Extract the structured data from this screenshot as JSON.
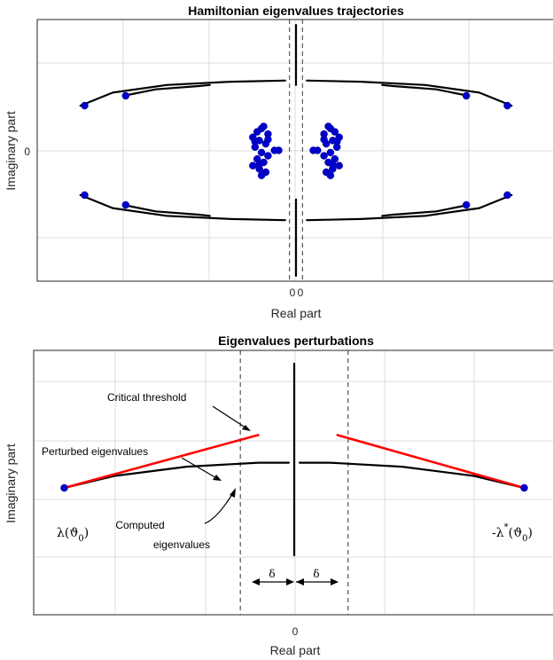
{
  "chart_data": [
    {
      "type": "scatter",
      "title": "Hamiltonian eigenvalues trajectories",
      "xlabel": "Real part",
      "ylabel": "Imaginary part",
      "xticks": [
        "0",
        "0"
      ],
      "yticks": [
        "0"
      ],
      "grid": true,
      "xlim": [
        -1.2,
        1.2
      ],
      "ylim": [
        -1.2,
        1.2
      ],
      "guide_lines_x": [
        -0.03,
        0.03
      ],
      "series": [
        {
          "kind": "curve",
          "color": "#000000",
          "paths": [
            {
              "x": [
                -1.0,
                -0.85,
                -0.6,
                -0.3,
                -0.05
              ],
              "y": [
                0.41,
                0.53,
                0.6,
                0.63,
                0.64
              ]
            },
            {
              "x": [
                -0.8,
                -0.65,
                -0.45,
                -0.4
              ],
              "y": [
                0.5,
                0.56,
                0.59,
                0.6
              ]
            },
            {
              "x": [
                1.0,
                0.85,
                0.6,
                0.3,
                0.05
              ],
              "y": [
                0.41,
                0.53,
                0.6,
                0.63,
                0.64
              ]
            },
            {
              "x": [
                0.8,
                0.65,
                0.45,
                0.4
              ],
              "y": [
                0.5,
                0.56,
                0.59,
                0.6
              ]
            },
            {
              "x": [
                -1.0,
                -0.85,
                -0.6,
                -0.3,
                -0.05
              ],
              "y": [
                -0.41,
                -0.53,
                -0.6,
                -0.63,
                -0.64
              ]
            },
            {
              "x": [
                -0.8,
                -0.65,
                -0.45,
                -0.4
              ],
              "y": [
                -0.5,
                -0.56,
                -0.59,
                -0.6
              ]
            },
            {
              "x": [
                1.0,
                0.85,
                0.6,
                0.3,
                0.05
              ],
              "y": [
                -0.41,
                -0.53,
                -0.6,
                -0.63,
                -0.64
              ]
            },
            {
              "x": [
                0.8,
                0.65,
                0.45,
                0.4
              ],
              "y": [
                -0.5,
                -0.56,
                -0.59,
                -0.6
              ]
            },
            {
              "x": [
                0.0,
                0.0
              ],
              "y": [
                0.6,
                1.15
              ]
            },
            {
              "x": [
                0.0,
                0.0
              ],
              "y": [
                -0.45,
                -1.15
              ]
            }
          ]
        },
        {
          "kind": "markers",
          "color": "#0000cc",
          "x": [
            -0.98,
            -0.79,
            0.79,
            0.98,
            -0.98,
            -0.79,
            0.79,
            0.98,
            -0.1,
            0.1,
            -0.16,
            -0.18,
            -0.15,
            -0.13,
            -0.2,
            -0.17,
            -0.14,
            -0.19,
            -0.16,
            -0.13,
            -0.18,
            -0.15,
            -0.2,
            -0.17,
            -0.14,
            -0.16,
            -0.19,
            -0.13,
            -0.17,
            0.16,
            0.18,
            0.15,
            0.13,
            0.2,
            0.17,
            0.14,
            0.19,
            0.16,
            0.13,
            0.18,
            0.15,
            0.2,
            0.17,
            0.14,
            0.16,
            0.19,
            0.13,
            0.17,
            -0.08,
            0.08
          ],
          "y": [
            0.41,
            0.5,
            0.5,
            0.41,
            -0.41,
            -0.5,
            -0.5,
            -0.41,
            0.0,
            0.0,
            0.2,
            0.17,
            0.22,
            0.15,
            0.12,
            0.09,
            0.06,
            0.03,
            -0.02,
            -0.05,
            -0.08,
            -0.11,
            -0.14,
            -0.17,
            -0.2,
            -0.23,
            0.08,
            0.1,
            -0.13,
            0.2,
            0.17,
            0.22,
            0.15,
            0.12,
            0.09,
            0.06,
            0.03,
            -0.02,
            -0.05,
            -0.08,
            -0.11,
            -0.14,
            -0.17,
            -0.2,
            -0.23,
            0.08,
            0.1,
            -0.13,
            0.0,
            0.0
          ]
        }
      ]
    },
    {
      "type": "line",
      "title": "Eigenvalues perturbations",
      "xlabel": "Real part",
      "ylabel": "Imaginary part",
      "xticks": [
        "0"
      ],
      "grid": true,
      "xlim": [
        -1.45,
        1.45
      ],
      "ylim": [
        -1.0,
        1.0
      ],
      "guide_lines_x": [
        -0.3,
        0.3
      ],
      "series": [
        {
          "name": "Computed eigenvalues",
          "color": "#000000",
          "paths": [
            {
              "x": [
                -1.28,
                -1.0,
                -0.6,
                -0.2,
                -0.03
              ],
              "y": [
                -0.04,
                0.05,
                0.12,
                0.15,
                0.15
              ]
            },
            {
              "x": [
                0.03,
                0.2,
                0.6,
                1.0,
                1.28
              ],
              "y": [
                0.15,
                0.15,
                0.12,
                0.05,
                -0.04
              ]
            },
            {
              "x": [
                0.0,
                0.0
              ],
              "y": [
                0.9,
                -0.55
              ]
            }
          ]
        },
        {
          "name": "Perturbed eigenvalues",
          "color": "#ff0000",
          "paths": [
            {
              "x": [
                -1.28,
                -0.2
              ],
              "y": [
                -0.04,
                0.36
              ]
            },
            {
              "x": [
                0.24,
                1.28
              ],
              "y": [
                0.36,
                -0.04
              ]
            }
          ]
        },
        {
          "kind": "markers",
          "color": "#0000cc",
          "x": [
            -1.28,
            1.28
          ],
          "y": [
            -0.04,
            -0.04
          ]
        }
      ],
      "annotations": {
        "critical_threshold": "Critical threshold",
        "perturbed": "Perturbed eigenvalues",
        "computed_line1": "Computed",
        "computed_line2": "eigenvalues",
        "delta": "δ",
        "lambda_left": "λ(ϑ",
        "lambda_left_sub": "0",
        "lambda_left_close": ")",
        "lambda_right": "-λ",
        "lambda_right_star": "*",
        "lambda_right_rest": "(ϑ",
        "lambda_right_sub": "0",
        "lambda_right_close": ")"
      }
    }
  ]
}
